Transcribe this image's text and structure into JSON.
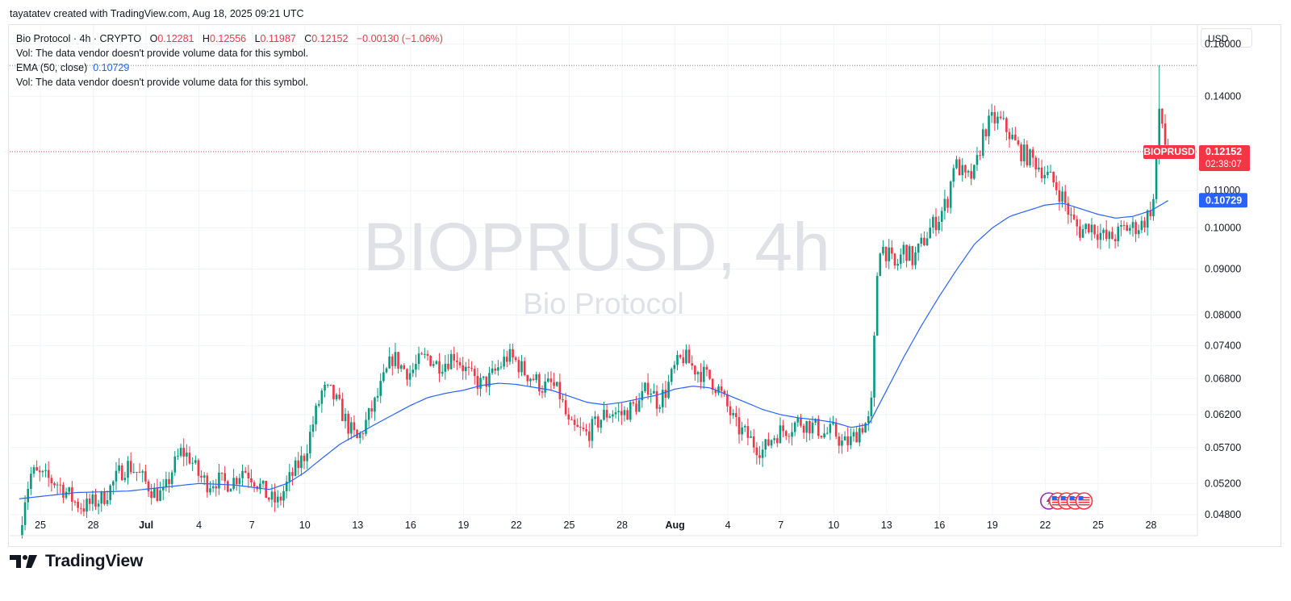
{
  "header": {
    "credit": "tayatatev created with TradingView.com, Aug 18, 2025 09:21 UTC"
  },
  "legend": {
    "symbol": "Bio Protocol · 4h · CRYPTO",
    "o_label": "O",
    "o_value": "0.12281",
    "h_label": "H",
    "h_value": "0.12556",
    "l_label": "L",
    "l_value": "0.11987",
    "c_label": "C",
    "c_value": "0.12152",
    "change": "−0.00130 (−1.06%)",
    "vol_note_1": "Vol: The data vendor doesn't provide volume data for this symbol.",
    "ema_label": "EMA (50, close)",
    "ema_value": "0.10729",
    "vol_note_2": "Vol: The data vendor doesn't provide volume data for this symbol."
  },
  "watermark": {
    "symbol": "BIOPRUSD, 4h",
    "name": "Bio Protocol"
  },
  "currency": "USD",
  "price_tag": {
    "ticker": "BIOPRUSD",
    "price": "0.12152",
    "countdown": "02:38:07"
  },
  "ema_tag": {
    "price": "0.10729"
  },
  "footer": {
    "brand": "TradingView"
  },
  "colors": {
    "up": "#089981",
    "down": "#f23645",
    "ema": "#2962ff",
    "price_line": "#f23645",
    "grid": "#f0f3fa"
  },
  "chart_data": {
    "type": "candlestick",
    "timeframe": "4h",
    "yaxis_scale": "log",
    "ylim": [
      0.0455,
      0.168
    ],
    "y_ticks": [
      0.16,
      0.14,
      0.11,
      0.1,
      0.09,
      0.08,
      0.074,
      0.068,
      0.062,
      0.057,
      0.052,
      0.048
    ],
    "y_tick_labels": [
      "0.16000",
      "0.14000",
      "0.11000",
      "0.10000",
      "0.09000",
      "0.08000",
      "0.07400",
      "0.06800",
      "0.06200",
      "0.05700",
      "0.05200",
      "0.04800"
    ],
    "x_tick_labels": [
      "25",
      "28",
      "Jul",
      "4",
      "7",
      "10",
      "13",
      "16",
      "19",
      "22",
      "25",
      "28",
      "Aug",
      "4",
      "7",
      "10",
      "13",
      "16",
      "19",
      "22",
      "25",
      "28"
    ],
    "x_tick_bold": [
      false,
      false,
      true,
      false,
      false,
      false,
      false,
      false,
      false,
      false,
      false,
      false,
      true,
      false,
      false,
      false,
      false,
      false,
      false,
      false,
      false,
      false
    ],
    "x_tick_day_index": [
      0,
      3,
      6,
      9,
      12,
      15,
      18,
      21,
      24,
      27,
      30,
      33,
      36,
      39,
      42,
      45,
      48,
      51,
      54,
      57,
      60,
      63
    ],
    "day_start": -1.2,
    "daily_close_path": [
      [
        -1.2,
        0.0455
      ],
      [
        -0.9,
        0.05
      ],
      [
        -0.5,
        0.0535
      ],
      [
        0.0,
        0.053
      ],
      [
        0.5,
        0.0525
      ],
      [
        1.0,
        0.052
      ],
      [
        1.5,
        0.0508
      ],
      [
        2.0,
        0.0495
      ],
      [
        2.5,
        0.049
      ],
      [
        3.0,
        0.0495
      ],
      [
        3.5,
        0.05
      ],
      [
        4.0,
        0.0515
      ],
      [
        4.5,
        0.0535
      ],
      [
        5.0,
        0.0545
      ],
      [
        5.5,
        0.0535
      ],
      [
        6.0,
        0.052
      ],
      [
        6.5,
        0.0508
      ],
      [
        7.0,
        0.0505
      ],
      [
        7.5,
        0.054
      ],
      [
        8.0,
        0.0565
      ],
      [
        8.5,
        0.0555
      ],
      [
        9.0,
        0.053
      ],
      [
        9.5,
        0.052
      ],
      [
        10.0,
        0.0525
      ],
      [
        10.5,
        0.052
      ],
      [
        11.0,
        0.0525
      ],
      [
        11.5,
        0.054
      ],
      [
        12.0,
        0.053
      ],
      [
        12.5,
        0.0515
      ],
      [
        13.0,
        0.05
      ],
      [
        13.5,
        0.0495
      ],
      [
        14.0,
        0.052
      ],
      [
        14.5,
        0.054
      ],
      [
        15.0,
        0.056
      ],
      [
        15.5,
        0.061
      ],
      [
        16.0,
        0.066
      ],
      [
        16.5,
        0.0655
      ],
      [
        17.0,
        0.063
      ],
      [
        17.5,
        0.06
      ],
      [
        18.0,
        0.058
      ],
      [
        18.5,
        0.061
      ],
      [
        19.0,
        0.064
      ],
      [
        19.5,
        0.068
      ],
      [
        20.0,
        0.072
      ],
      [
        20.5,
        0.07
      ],
      [
        21.0,
        0.069
      ],
      [
        21.5,
        0.071
      ],
      [
        22.0,
        0.072
      ],
      [
        22.5,
        0.0705
      ],
      [
        23.0,
        0.071
      ],
      [
        23.5,
        0.0725
      ],
      [
        24.0,
        0.07
      ],
      [
        24.5,
        0.068
      ],
      [
        25.0,
        0.067
      ],
      [
        25.5,
        0.068
      ],
      [
        26.0,
        0.07
      ],
      [
        26.5,
        0.072
      ],
      [
        27.0,
        0.071
      ],
      [
        27.5,
        0.069
      ],
      [
        28.0,
        0.068
      ],
      [
        28.5,
        0.0665
      ],
      [
        29.0,
        0.067
      ],
      [
        29.5,
        0.065
      ],
      [
        30.0,
        0.06
      ],
      [
        30.5,
        0.0595
      ],
      [
        31.0,
        0.059
      ],
      [
        31.5,
        0.0605
      ],
      [
        32.0,
        0.062
      ],
      [
        32.5,
        0.0625
      ],
      [
        33.0,
        0.062
      ],
      [
        33.5,
        0.063
      ],
      [
        34.0,
        0.064
      ],
      [
        34.5,
        0.067
      ],
      [
        35.0,
        0.064
      ],
      [
        35.5,
        0.066
      ],
      [
        36.0,
        0.07
      ],
      [
        36.5,
        0.072
      ],
      [
        37.0,
        0.07
      ],
      [
        37.5,
        0.069
      ],
      [
        38.0,
        0.068
      ],
      [
        38.5,
        0.066
      ],
      [
        39.0,
        0.063
      ],
      [
        39.5,
        0.06
      ],
      [
        40.0,
        0.059
      ],
      [
        40.5,
        0.0575
      ],
      [
        41.0,
        0.0565
      ],
      [
        41.5,
        0.0585
      ],
      [
        42.0,
        0.0595
      ],
      [
        42.5,
        0.06
      ],
      [
        43.0,
        0.061
      ],
      [
        43.5,
        0.0605
      ],
      [
        44.0,
        0.06
      ],
      [
        44.5,
        0.059
      ],
      [
        45.0,
        0.0595
      ],
      [
        45.5,
        0.0575
      ],
      [
        46.0,
        0.058
      ],
      [
        46.5,
        0.06
      ],
      [
        47.0,
        0.061
      ],
      [
        47.2,
        0.065
      ],
      [
        47.35,
        0.08
      ],
      [
        47.55,
        0.096
      ],
      [
        48.0,
        0.094
      ],
      [
        48.5,
        0.09
      ],
      [
        49.0,
        0.095
      ],
      [
        49.5,
        0.092
      ],
      [
        50.0,
        0.096
      ],
      [
        50.5,
        0.1
      ],
      [
        51.0,
        0.103
      ],
      [
        51.5,
        0.108
      ],
      [
        51.8,
        0.118
      ],
      [
        52.2,
        0.116
      ],
      [
        52.5,
        0.113
      ],
      [
        53.0,
        0.115
      ],
      [
        53.5,
        0.128
      ],
      [
        54.0,
        0.132
      ],
      [
        54.5,
        0.131
      ],
      [
        55.0,
        0.127
      ],
      [
        55.5,
        0.122
      ],
      [
        56.0,
        0.12
      ],
      [
        56.5,
        0.118
      ],
      [
        57.0,
        0.115
      ],
      [
        57.5,
        0.112
      ],
      [
        58.0,
        0.108
      ],
      [
        58.5,
        0.102
      ],
      [
        59.0,
        0.099
      ],
      [
        59.5,
        0.101
      ],
      [
        60.0,
        0.099
      ],
      [
        60.5,
        0.097
      ],
      [
        61.0,
        0.098
      ],
      [
        61.5,
        0.1
      ],
      [
        62.0,
        0.1
      ],
      [
        62.5,
        0.101
      ],
      [
        62.9,
        0.104
      ],
      [
        63.2,
        0.108
      ],
      [
        63.4,
        0.132
      ],
      [
        63.55,
        0.134
      ],
      [
        63.8,
        0.124
      ],
      [
        64.0,
        0.1215
      ]
    ],
    "ema_path": [
      [
        -1.2,
        0.05
      ],
      [
        2.0,
        0.0508
      ],
      [
        5.0,
        0.051
      ],
      [
        7.0,
        0.0515
      ],
      [
        9.0,
        0.052
      ],
      [
        11.0,
        0.0518
      ],
      [
        13.0,
        0.0512
      ],
      [
        14.0,
        0.052
      ],
      [
        15.0,
        0.0535
      ],
      [
        16.0,
        0.0555
      ],
      [
        17.0,
        0.0575
      ],
      [
        19.0,
        0.0605
      ],
      [
        21.0,
        0.0635
      ],
      [
        22.0,
        0.0648
      ],
      [
        23.0,
        0.0655
      ],
      [
        24.0,
        0.066
      ],
      [
        25.0,
        0.0668
      ],
      [
        26.0,
        0.0672
      ],
      [
        27.0,
        0.067
      ],
      [
        28.0,
        0.0665
      ],
      [
        29.0,
        0.066
      ],
      [
        30.0,
        0.065
      ],
      [
        31.0,
        0.064
      ],
      [
        32.0,
        0.0636
      ],
      [
        33.0,
        0.064
      ],
      [
        34.0,
        0.0646
      ],
      [
        35.0,
        0.0652
      ],
      [
        36.0,
        0.0662
      ],
      [
        37.0,
        0.0667
      ],
      [
        38.0,
        0.0664
      ],
      [
        39.0,
        0.0652
      ],
      [
        40.0,
        0.064
      ],
      [
        41.0,
        0.0628
      ],
      [
        42.0,
        0.062
      ],
      [
        43.0,
        0.0615
      ],
      [
        44.0,
        0.0612
      ],
      [
        45.0,
        0.0608
      ],
      [
        46.0,
        0.06
      ],
      [
        47.0,
        0.0605
      ],
      [
        48.0,
        0.066
      ],
      [
        49.0,
        0.072
      ],
      [
        50.0,
        0.078
      ],
      [
        51.0,
        0.084
      ],
      [
        52.0,
        0.09
      ],
      [
        53.0,
        0.096
      ],
      [
        54.0,
        0.1
      ],
      [
        55.0,
        0.103
      ],
      [
        56.0,
        0.1045
      ],
      [
        57.0,
        0.106
      ],
      [
        58.0,
        0.1065
      ],
      [
        59.0,
        0.105
      ],
      [
        60.0,
        0.1035
      ],
      [
        61.0,
        0.1025
      ],
      [
        62.0,
        0.103
      ],
      [
        63.0,
        0.1045
      ],
      [
        64.0,
        0.1073
      ]
    ],
    "last": {
      "open": 0.12281,
      "high": 0.12556,
      "low": 0.11987,
      "close": 0.12152
    },
    "ath_line": 0.1515,
    "ath_day": 63.5,
    "event_icons": [
      "lightning-icon",
      "us-flag-icon",
      "us-flag-icon",
      "us-flag-icon",
      "us-flag-icon"
    ],
    "event_icon_days": [
      57.2,
      57.7,
      58.2,
      58.7,
      59.2
    ]
  }
}
